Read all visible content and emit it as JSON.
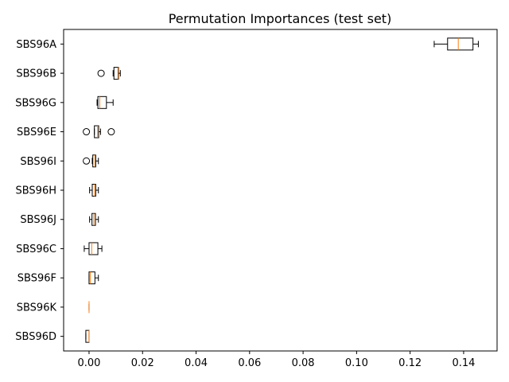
{
  "chart_data": {
    "type": "boxplot",
    "orientation": "horizontal",
    "title": "Permutation Importances (test set)",
    "xlabel": "",
    "ylabel": "",
    "xlim": [
      -0.0095,
      0.1525
    ],
    "xticks": [
      0.0,
      0.02,
      0.04,
      0.06,
      0.08,
      0.1,
      0.12,
      0.14
    ],
    "xtick_labels": [
      "0.00",
      "0.02",
      "0.04",
      "0.06",
      "0.08",
      "0.10",
      "0.12",
      "0.14"
    ],
    "grid": false,
    "colors": {
      "box": "#000000",
      "median": "#ff7f0e",
      "whisker": "#000000",
      "flier": "#000000"
    },
    "categories": [
      "SBS96A",
      "SBS96B",
      "SBS96G",
      "SBS96E",
      "SBS96I",
      "SBS96H",
      "SBS96J",
      "SBS96C",
      "SBS96F",
      "SBS96K",
      "SBS96D"
    ],
    "boxes": [
      {
        "label": "SBS96A",
        "whislo": 0.129,
        "q1": 0.134,
        "med": 0.138,
        "q3": 0.1435,
        "whishi": 0.1455,
        "fliers": []
      },
      {
        "label": "SBS96B",
        "whislo": 0.009,
        "q1": 0.0093,
        "med": 0.0108,
        "q3": 0.011,
        "whishi": 0.0117,
        "fliers": [
          0.0045
        ]
      },
      {
        "label": "SBS96G",
        "whislo": 0.003,
        "q1": 0.0033,
        "med": 0.004,
        "q3": 0.0065,
        "whishi": 0.009,
        "fliers": []
      },
      {
        "label": "SBS96E",
        "whislo": 0.002,
        "q1": 0.002,
        "med": 0.0032,
        "q3": 0.0036,
        "whishi": 0.0043,
        "fliers": [
          -0.001,
          0.0083
        ]
      },
      {
        "label": "SBS96I",
        "whislo": 0.0012,
        "q1": 0.0014,
        "med": 0.0022,
        "q3": 0.0025,
        "whishi": 0.0035,
        "fliers": [
          -0.001
        ]
      },
      {
        "label": "SBS96H",
        "whislo": 0.0002,
        "q1": 0.0012,
        "med": 0.0021,
        "q3": 0.0025,
        "whishi": 0.0035,
        "fliers": []
      },
      {
        "label": "SBS96J",
        "whislo": 0.0002,
        "q1": 0.0011,
        "med": 0.0018,
        "q3": 0.0024,
        "whishi": 0.0035,
        "fliers": []
      },
      {
        "label": "SBS96C",
        "whislo": -0.0018,
        "q1": 0.0,
        "med": 0.001,
        "q3": 0.0033,
        "whishi": 0.0048,
        "fliers": []
      },
      {
        "label": "SBS96F",
        "whislo": 0.0,
        "q1": 0.0,
        "med": 0.0005,
        "q3": 0.0022,
        "whishi": 0.0035,
        "fliers": []
      },
      {
        "label": "SBS96K",
        "whislo": 0.0,
        "q1": 0.0,
        "med": 0.0,
        "q3": 0.0,
        "whishi": 0.0,
        "fliers": []
      },
      {
        "label": "SBS96D",
        "whislo": -0.0012,
        "q1": -0.0012,
        "med": 0.0,
        "q3": 0.0,
        "whishi": 0.0,
        "fliers": []
      }
    ]
  }
}
